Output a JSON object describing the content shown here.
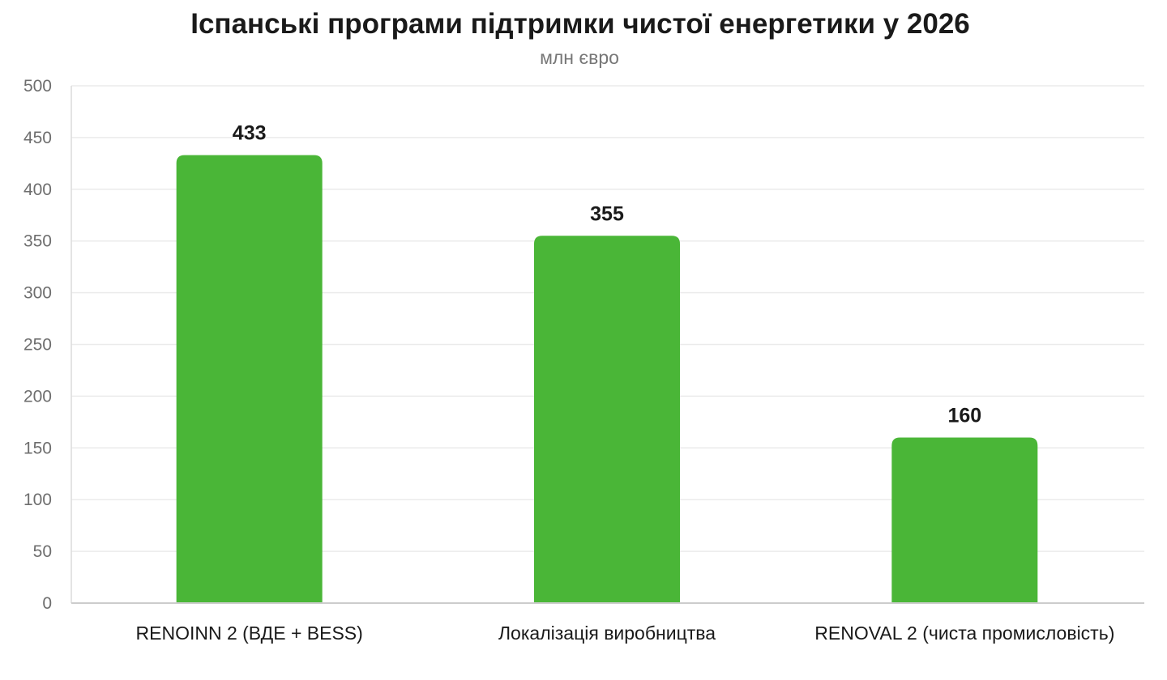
{
  "chart_data": {
    "type": "bar",
    "title": "Іспанські програми підтримки чистої енергетики у 2026",
    "subtitle": "млн євро",
    "xlabel": "",
    "ylabel": "",
    "categories": [
      "RENOINN 2 (ВДЕ + BESS)",
      "Локалізація виробництва",
      "RENOVAL 2 (чиста промисловість)"
    ],
    "values": [
      433,
      355,
      160
    ],
    "value_labels": [
      "433",
      "355",
      "160"
    ],
    "ylim": [
      0,
      500
    ],
    "yticks": [
      0,
      50,
      100,
      150,
      200,
      250,
      300,
      350,
      400,
      450,
      500
    ],
    "grid": true,
    "legend": "none",
    "bar_color": "#4ab637"
  }
}
